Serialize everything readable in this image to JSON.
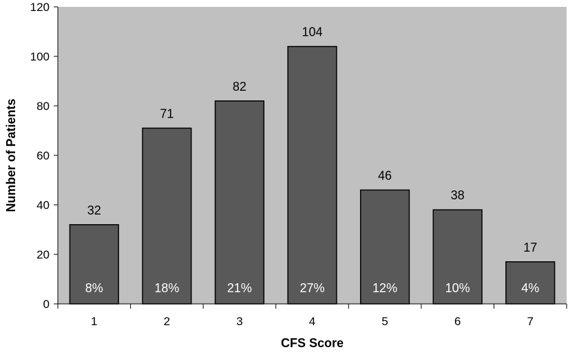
{
  "chart_data": {
    "type": "bar",
    "title": "",
    "xlabel": "CFS Score",
    "ylabel": "Number of Patients",
    "categories": [
      "1",
      "2",
      "3",
      "4",
      "5",
      "6",
      "7"
    ],
    "values": [
      32,
      71,
      82,
      104,
      46,
      38,
      17
    ],
    "value_labels": [
      "32",
      "71",
      "82",
      "104",
      "46",
      "38",
      "17"
    ],
    "percent_labels": [
      "8%",
      "18%",
      "21%",
      "27%",
      "12%",
      "10%",
      "4%"
    ],
    "yticks": [
      "0",
      "20",
      "40",
      "60",
      "80",
      "100",
      "120"
    ],
    "ylim": [
      0,
      120
    ],
    "grid": false,
    "legend": "none",
    "colors": {
      "plot_background": "#c0c0c0",
      "bar_fill": "#595959",
      "bar_stroke": "#000000",
      "percent_text": "#ffffff"
    }
  }
}
